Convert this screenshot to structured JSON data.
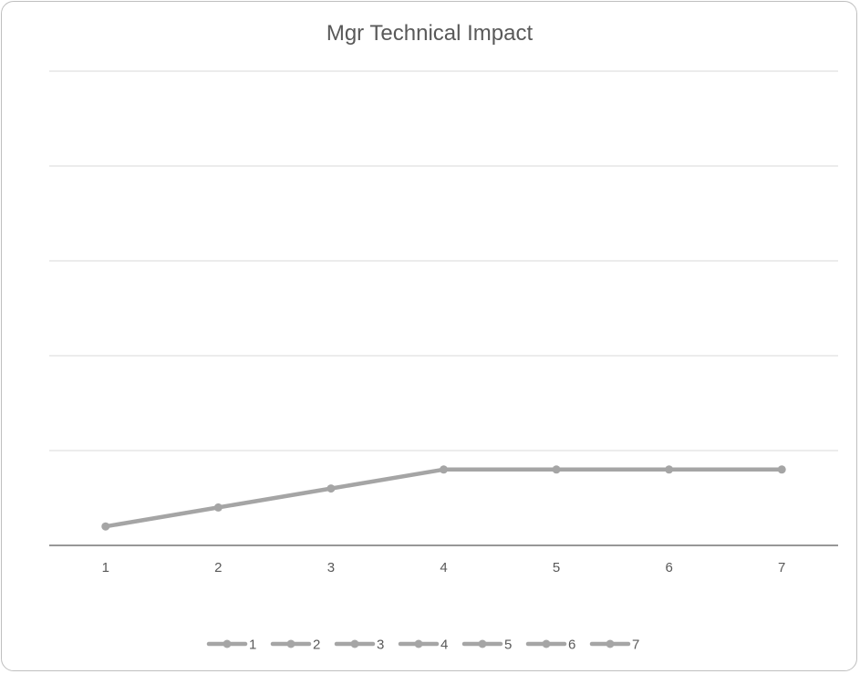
{
  "chart_data": {
    "type": "line",
    "title": "Mgr Technical Impact",
    "xlabel": "",
    "ylabel": "",
    "categories": [
      "1",
      "2",
      "3",
      "4",
      "5",
      "6",
      "7"
    ],
    "series": [
      {
        "values": [
          0.2,
          0.4,
          0.6,
          0.8,
          0.8,
          0.8,
          0.8
        ]
      }
    ],
    "ylim": [
      0,
      5
    ],
    "grid": true,
    "y_tick_labels_visible": false,
    "legend": {
      "position": "bottom",
      "entries": [
        "1",
        "2",
        "3",
        "4",
        "5",
        "6",
        "7"
      ]
    },
    "colors": {
      "series": "#a5a5a5",
      "gridline": "#d9d9d9",
      "axis": "#595959",
      "title": "#595959",
      "tick_label": "#595959",
      "frame": "#bfbfbf"
    }
  }
}
